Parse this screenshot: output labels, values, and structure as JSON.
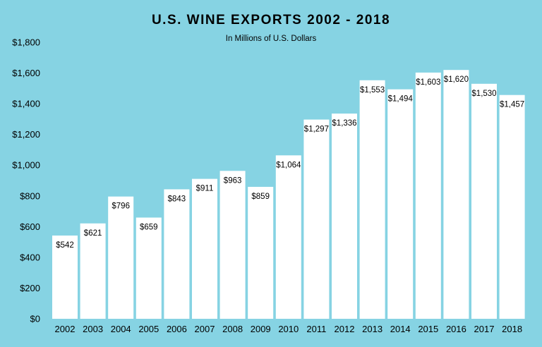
{
  "chart_data": {
    "type": "bar",
    "title": "U.S. WINE EXPORTS 2002 - 2018",
    "subtitle": "In Millions of U.S. Dollars",
    "xlabel": "",
    "ylabel": "",
    "categories": [
      "2002",
      "2003",
      "2004",
      "2005",
      "2006",
      "2007",
      "2008",
      "2009",
      "2010",
      "2011",
      "2012",
      "2013",
      "2014",
      "2015",
      "2016",
      "2017",
      "2018"
    ],
    "values": [
      542,
      621,
      796,
      659,
      843,
      911,
      963,
      859,
      1064,
      1297,
      1336,
      1553,
      1494,
      1603,
      1620,
      1530,
      1457
    ],
    "data_labels": [
      "$542",
      "$621",
      "$796",
      "$659",
      "$843",
      "$911",
      "$963",
      "$859",
      "$1,064",
      "$1,297",
      "$1,336",
      "$1,553",
      "$1,494",
      "$1,603",
      "$1,620",
      "$1,530",
      "$1,457"
    ],
    "ylim": [
      0,
      1800
    ],
    "y_ticks": [
      0,
      200,
      400,
      600,
      800,
      1000,
      1200,
      1400,
      1600,
      1800
    ],
    "y_tick_labels": [
      "$0",
      "$200",
      "$400",
      "$600",
      "$800",
      "$1,000",
      "$1,200",
      "$1,400",
      "$1,600",
      "$1,800"
    ],
    "grid": false,
    "legend": "none",
    "colors": {
      "background": "#86D3E3",
      "bar": "#FFFFFF",
      "text": "#000000"
    }
  }
}
